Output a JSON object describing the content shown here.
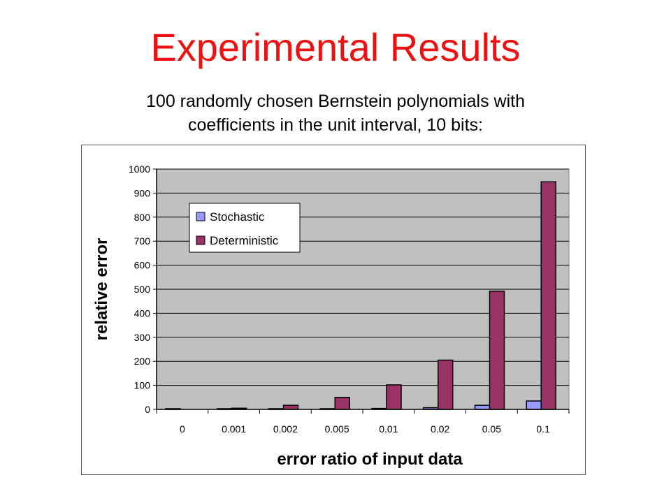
{
  "slide": {
    "title": "Experimental Results",
    "subtitle_line1": "100 randomly chosen Bernstein polynomials with",
    "subtitle_line2": "coefficients in the unit interval, 10 bits:"
  },
  "chart_data": {
    "type": "bar",
    "title": "",
    "xlabel": "error ratio of input data",
    "ylabel": "relative error",
    "categories": [
      "0",
      "0.001",
      "0.002",
      "0.005",
      "0.01",
      "0.02",
      "0.05",
      "0.1"
    ],
    "series": [
      {
        "name": "Stochastic",
        "color": "#9999ff",
        "values": [
          3,
          3,
          3,
          3,
          4,
          7,
          17,
          35
        ]
      },
      {
        "name": "Deterministic",
        "color": "#993366",
        "values": [
          0,
          5,
          17,
          50,
          102,
          205,
          492,
          947
        ]
      }
    ],
    "ylim": [
      0,
      1000
    ],
    "yticks": [
      0,
      100,
      200,
      300,
      400,
      500,
      600,
      700,
      800,
      900,
      1000
    ],
    "grid": true,
    "legend_position": "top-left",
    "plot_background": "#c0c0c0"
  }
}
